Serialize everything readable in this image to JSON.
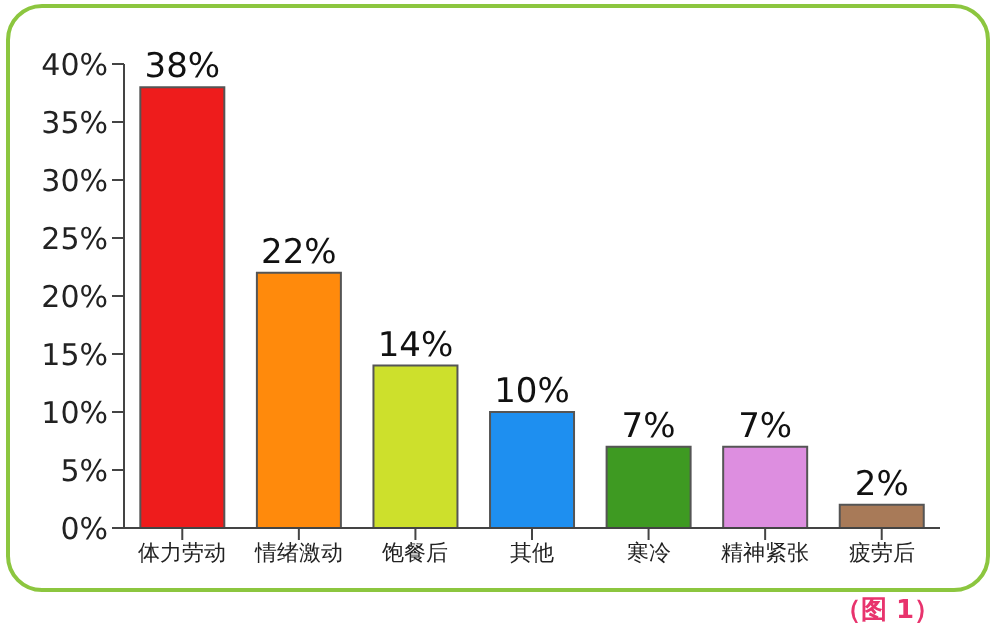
{
  "chart_data": {
    "type": "bar",
    "categories": [
      "体力劳动",
      "情绪激动",
      "饱餐后",
      "其他",
      "寒冷",
      "精神紧张",
      "疲劳后"
    ],
    "values": [
      38,
      22,
      14,
      10,
      7,
      7,
      2
    ],
    "colors": [
      "#ee1c1c",
      "#ff8a0c",
      "#cde02c",
      "#1e8ff0",
      "#3e9a22",
      "#dd8ee0",
      "#a87a58"
    ],
    "value_labels": [
      "38%",
      "22%",
      "14%",
      "10%",
      "7%",
      "7%",
      "2%"
    ],
    "ylim": [
      0,
      40
    ],
    "yticks": [
      {
        "value": 0,
        "label": "0%"
      },
      {
        "value": 5,
        "label": "5%"
      },
      {
        "value": 10,
        "label": "10%"
      },
      {
        "value": 15,
        "label": "15%"
      },
      {
        "value": 20,
        "label": "20%"
      },
      {
        "value": 25,
        "label": "25%"
      },
      {
        "value": 30,
        "label": "30%"
      },
      {
        "value": 35,
        "label": "35%"
      },
      {
        "value": 40,
        "label": "40%"
      }
    ],
    "annotations": [
      "（图 1）"
    ]
  }
}
